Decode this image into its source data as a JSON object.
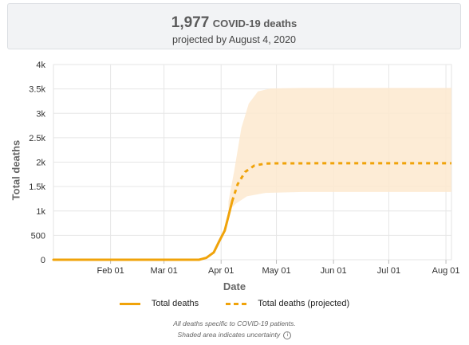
{
  "summary": {
    "value": "1,977",
    "unit": "COVID-19 deaths",
    "subtitle": "projected by August 4, 2020"
  },
  "legend": {
    "total": "Total deaths",
    "projected": "Total deaths (projected)"
  },
  "footnote": {
    "line1": "All deaths specific to COVID-19 patients.",
    "line2": "Shaded area indicates uncertainty",
    "info_icon": "info-icon"
  },
  "colors": {
    "line": "#f0a30a",
    "band": "#fde9cf"
  },
  "chart_data": {
    "type": "line",
    "xlabel": "Date",
    "ylabel": "Total deaths",
    "ylim": [
      0,
      4000
    ],
    "y_ticks": [
      "0",
      "500",
      "1k",
      "1.5k",
      "2k",
      "2.5k",
      "3k",
      "3.5k",
      "4k"
    ],
    "x_ticks": [
      {
        "label": "Feb 01",
        "date": "2020-02-01"
      },
      {
        "label": "Mar 01",
        "date": "2020-03-01"
      },
      {
        "label": "Apr 01",
        "date": "2020-04-01"
      },
      {
        "label": "May 01",
        "date": "2020-05-01"
      },
      {
        "label": "Jun 01",
        "date": "2020-06-01"
      },
      {
        "label": "Jul 01",
        "date": "2020-07-01"
      },
      {
        "label": "Aug 01",
        "date": "2020-08-01"
      }
    ],
    "grid": true,
    "legend_position": "bottom",
    "series": [
      {
        "name": "Total deaths",
        "style": "solid",
        "points": [
          [
            "2020-01-01",
            0
          ],
          [
            "2020-02-01",
            0
          ],
          [
            "2020-03-01",
            0
          ],
          [
            "2020-03-20",
            0
          ],
          [
            "2020-03-24",
            40
          ],
          [
            "2020-03-28",
            150
          ],
          [
            "2020-03-31",
            380
          ],
          [
            "2020-04-03",
            600
          ],
          [
            "2020-04-05",
            900
          ],
          [
            "2020-04-07",
            1200
          ]
        ]
      },
      {
        "name": "Total deaths (projected)",
        "style": "dashed",
        "points": [
          [
            "2020-04-07",
            1200
          ],
          [
            "2020-04-10",
            1550
          ],
          [
            "2020-04-14",
            1800
          ],
          [
            "2020-04-19",
            1930
          ],
          [
            "2020-04-25",
            1970
          ],
          [
            "2020-05-01",
            1975
          ],
          [
            "2020-06-01",
            1977
          ],
          [
            "2020-07-01",
            1977
          ],
          [
            "2020-08-04",
            1977
          ]
        ]
      }
    ],
    "uncertainty_band": {
      "upper": [
        [
          "2020-04-05",
          1200
        ],
        [
          "2020-04-08",
          1800
        ],
        [
          "2020-04-12",
          2700
        ],
        [
          "2020-04-16",
          3200
        ],
        [
          "2020-04-21",
          3450
        ],
        [
          "2020-04-28",
          3510
        ],
        [
          "2020-05-15",
          3520
        ],
        [
          "2020-08-04",
          3520
        ]
      ],
      "lower": [
        [
          "2020-04-05",
          1000
        ],
        [
          "2020-04-09",
          1150
        ],
        [
          "2020-04-15",
          1300
        ],
        [
          "2020-04-25",
          1370
        ],
        [
          "2020-05-15",
          1390
        ],
        [
          "2020-08-04",
          1390
        ]
      ]
    }
  }
}
